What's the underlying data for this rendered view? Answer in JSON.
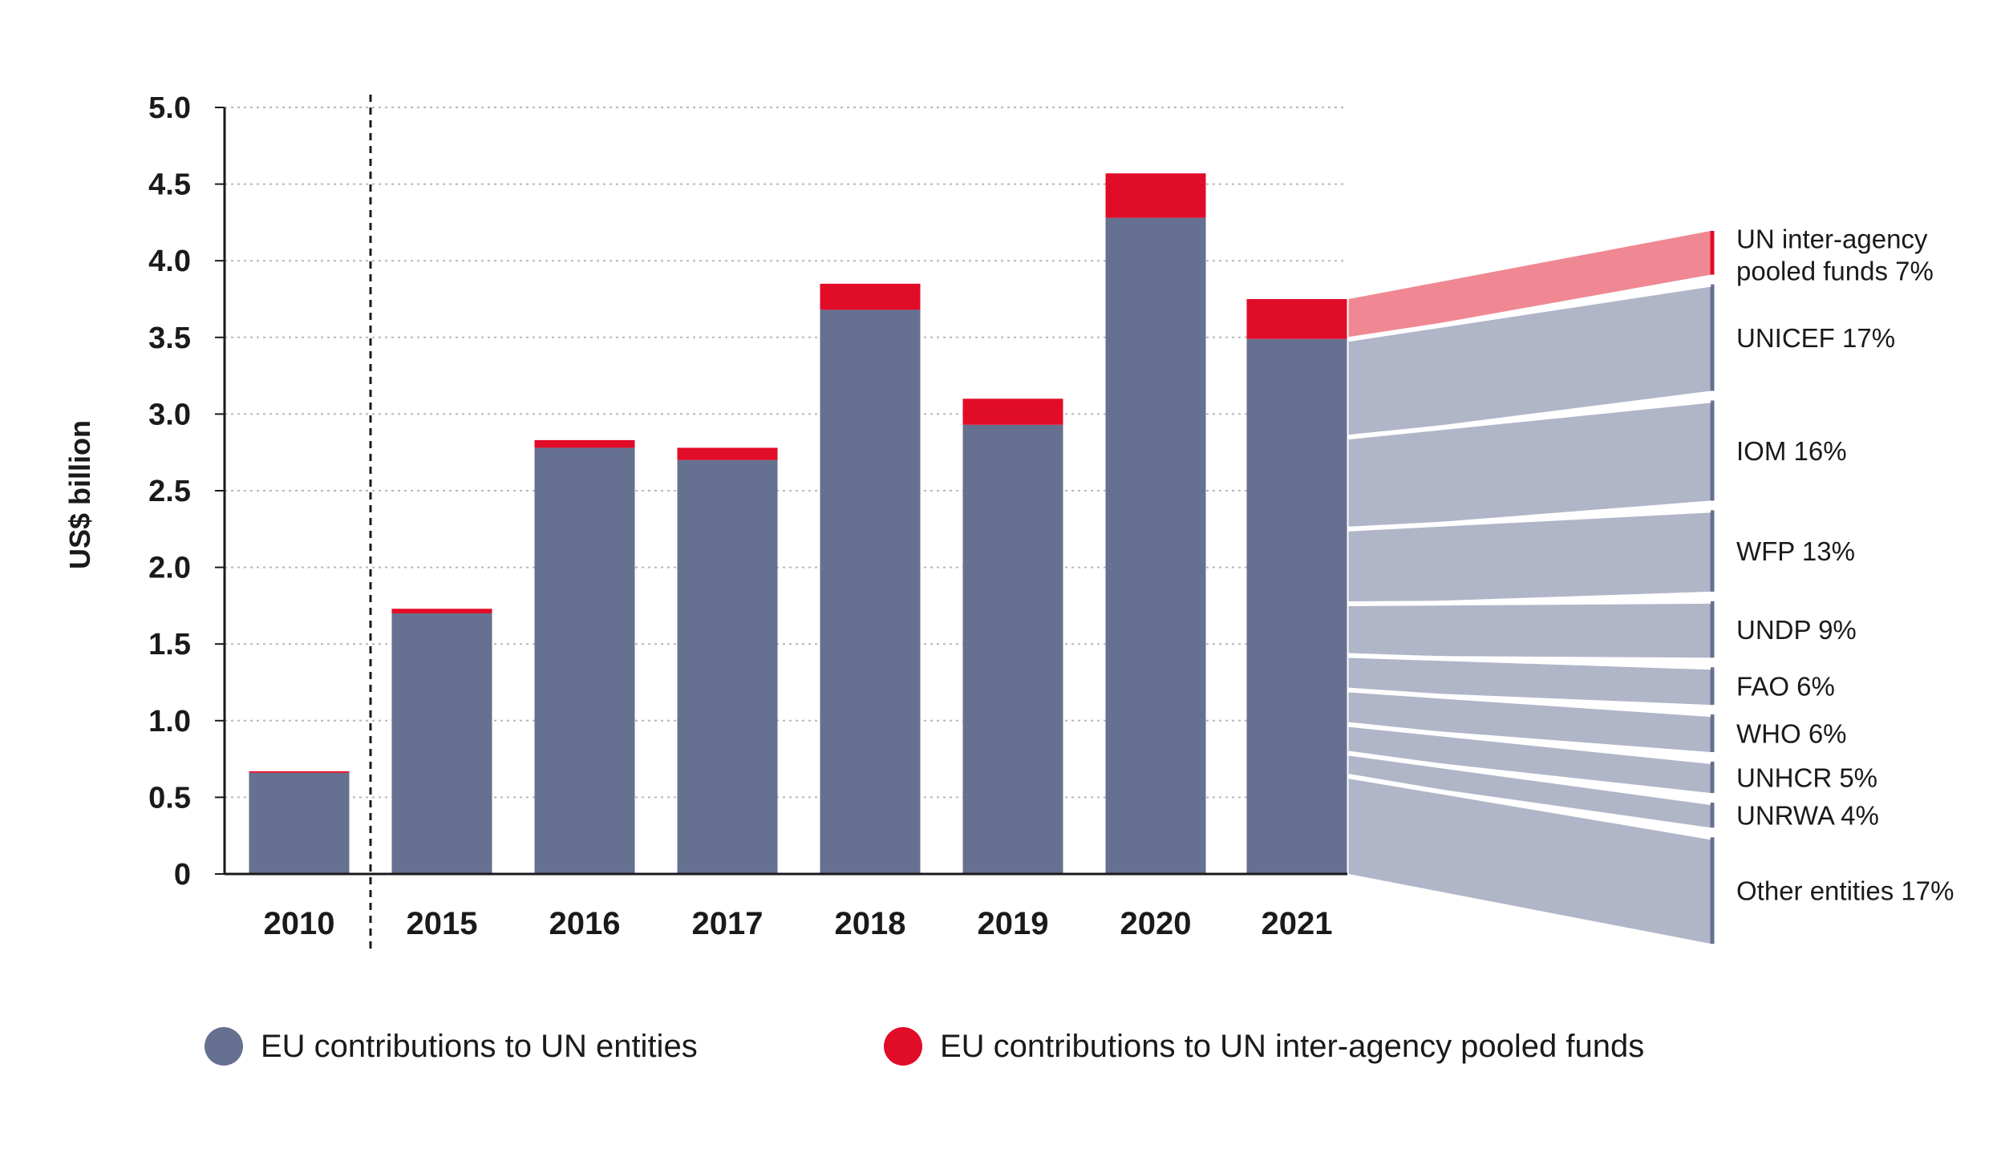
{
  "chart_data": {
    "type": "bar",
    "stacked": true,
    "ylabel": "US$ billion",
    "ylim": [
      0,
      5.0
    ],
    "yticks": [
      "0",
      "0.5",
      "1.0",
      "1.5",
      "2.0",
      "2.5",
      "3.0",
      "3.5",
      "4.0",
      "4.5",
      "5.0"
    ],
    "ytick_values": [
      0,
      0.5,
      1.0,
      1.5,
      2.0,
      2.5,
      3.0,
      3.5,
      4.0,
      4.5,
      5.0
    ],
    "grid": "horizontal dotted",
    "legend_position": "bottom",
    "categories": [
      "2010",
      "2015",
      "2016",
      "2017",
      "2018",
      "2019",
      "2020",
      "2021"
    ],
    "series": [
      {
        "name": "EU contributions to UN entities",
        "color": "#667091",
        "values": [
          0.66,
          1.7,
          2.78,
          2.7,
          3.68,
          2.93,
          4.28,
          3.49
        ]
      },
      {
        "name": "EU contributions to UN inter-agency pooled funds",
        "color": "#e10c28",
        "values": [
          0.01,
          0.03,
          0.05,
          0.08,
          0.17,
          0.17,
          0.29,
          0.26
        ]
      }
    ],
    "breakdown_2021": [
      {
        "label": "UN inter-agency pooled funds 7%",
        "share": 7,
        "color": "#ef8893",
        "edge": "#e10c28"
      },
      {
        "label": "UNICEF 17%",
        "share": 17,
        "color": "#b0b5c8",
        "edge": "#667091"
      },
      {
        "label": "IOM 16%",
        "share": 16,
        "color": "#b0b5c8",
        "edge": "#667091"
      },
      {
        "label": "WFP 13%",
        "share": 13,
        "color": "#b0b5c8",
        "edge": "#667091"
      },
      {
        "label": "UNDP 9%",
        "share": 9,
        "color": "#b0b5c8",
        "edge": "#667091"
      },
      {
        "label": "FAO 6%",
        "share": 6,
        "color": "#b0b5c8",
        "edge": "#667091"
      },
      {
        "label": "WHO 6%",
        "share": 6,
        "color": "#b0b5c8",
        "edge": "#667091"
      },
      {
        "label": "UNHCR 5%",
        "share": 5,
        "color": "#b0b5c8",
        "edge": "#667091"
      },
      {
        "label": "UNRWA 4%",
        "share": 4,
        "color": "#b0b5c8",
        "edge": "#667091"
      },
      {
        "label": "Other entities 17%",
        "share": 17,
        "color": "#b0b5c8",
        "edge": "#667091"
      }
    ]
  },
  "legend": {
    "entities_label": "EU contributions to UN entities",
    "entities_color": "#667091",
    "pooled_label": "EU contributions to UN inter-agency pooled funds",
    "pooled_color": "#e10c28"
  }
}
